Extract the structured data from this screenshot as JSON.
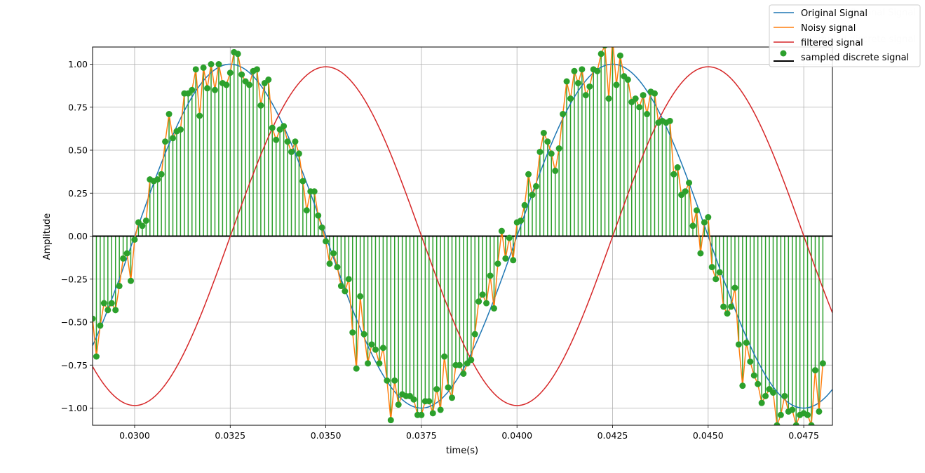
{
  "chart_data": {
    "type": "line",
    "title": "",
    "xlabel": "time(s)",
    "ylabel": "Amplitude",
    "xlim": [
      0.0289,
      0.04825
    ],
    "ylim": [
      -1.1,
      1.1
    ],
    "grid": true,
    "legend_position": "top-right",
    "x_ticks": [
      "0.0300",
      "0.0325",
      "0.0350",
      "0.0375",
      "0.0400",
      "0.0425",
      "0.0450",
      "0.0475"
    ],
    "x_tick_values": [
      0.03,
      0.0325,
      0.035,
      0.0375,
      0.04,
      0.0425,
      0.045,
      0.0475
    ],
    "y_ticks": [
      "−1.00",
      "−0.75",
      "−0.50",
      "−0.25",
      "0.00",
      "0.25",
      "0.50",
      "0.75",
      "1.00"
    ],
    "y_tick_values": [
      -1.0,
      -0.75,
      -0.5,
      -0.25,
      0.0,
      0.25,
      0.5,
      0.75,
      1.0
    ],
    "sample_interval": 0.0001,
    "series": [
      {
        "name": "Original Signal",
        "color": "#1f77b4",
        "kind": "sine",
        "frequency_hz": 100,
        "amplitude": 1.0,
        "phase_deg": 0
      },
      {
        "name": "Noisy signal",
        "color": "#ff7f0e",
        "kind": "line",
        "x_start": 0.0289,
        "x_step": 0.0001,
        "values": [
          -0.48,
          -0.7,
          -0.52,
          -0.39,
          -0.43,
          -0.39,
          -0.43,
          -0.29,
          -0.13,
          -0.1,
          -0.26,
          -0.02,
          0.08,
          0.06,
          0.09,
          0.33,
          0.32,
          0.33,
          0.36,
          0.55,
          0.71,
          0.57,
          0.61,
          0.62,
          0.83,
          0.83,
          0.85,
          0.97,
          0.7,
          0.98,
          0.86,
          1.0,
          0.85,
          1.0,
          0.89,
          0.88,
          0.95,
          1.07,
          1.06,
          0.94,
          0.9,
          0.88,
          0.96,
          0.97,
          0.76,
          0.89,
          0.91,
          0.63,
          0.56,
          0.62,
          0.64,
          0.55,
          0.49,
          0.55,
          0.48,
          0.32,
          0.15,
          0.26,
          0.26,
          0.12,
          0.05,
          -0.03,
          -0.16,
          -0.1,
          -0.18,
          -0.29,
          -0.32,
          -0.25,
          -0.56,
          -0.77,
          -0.35,
          -0.57,
          -0.74,
          -0.63,
          -0.66,
          -0.74,
          -0.65,
          -0.84,
          -1.07,
          -0.84,
          -0.98,
          -0.92,
          -0.93,
          -0.93,
          -0.95,
          -1.04,
          -1.04,
          -0.96,
          -0.96,
          -1.03,
          -0.89,
          -1.01,
          -0.7,
          -0.88,
          -0.94,
          -0.75,
          -0.75,
          -0.8,
          -0.74,
          -0.72,
          -0.57,
          -0.38,
          -0.34,
          -0.39,
          -0.23,
          -0.42,
          -0.16,
          0.03,
          -0.13,
          -0.01,
          -0.14,
          0.08,
          0.09,
          0.18,
          0.36,
          0.24,
          0.29,
          0.49,
          0.6,
          0.55,
          0.48,
          0.38,
          0.51,
          0.71,
          0.9,
          0.8,
          0.96,
          0.89,
          0.97,
          0.82,
          0.87,
          0.97,
          0.96,
          1.06,
          1.11,
          0.8,
          1.15,
          0.88,
          1.05,
          0.93,
          0.91,
          0.78,
          0.8,
          0.75,
          0.82,
          0.71,
          0.84,
          0.83,
          0.66,
          0.67,
          0.66,
          0.67,
          0.36,
          0.4,
          0.24,
          0.26,
          0.31,
          0.06,
          0.15,
          -0.1,
          0.08,
          0.11,
          -0.18,
          -0.25,
          -0.21,
          -0.41,
          -0.45,
          -0.41,
          -0.3,
          -0.63,
          -0.87,
          -0.62,
          -0.73,
          -0.81,
          -0.86,
          -0.97,
          -0.93,
          -0.89,
          -0.91,
          -1.1,
          -1.04,
          -0.93,
          -1.02,
          -1.01,
          -1.1,
          -1.04,
          -1.03,
          -1.04,
          -1.1,
          -0.78,
          -1.02,
          -0.74
        ]
      },
      {
        "name": "filtered signal",
        "color": "#d62728",
        "kind": "sine",
        "frequency_hz": 100,
        "amplitude": 0.985,
        "phase_deg": -90.1
      },
      {
        "name": "sampled discrete signal",
        "color": "#2ca02c",
        "kind": "stem",
        "uses_series": "Noisy signal",
        "baseline_color": "#000000"
      }
    ]
  }
}
